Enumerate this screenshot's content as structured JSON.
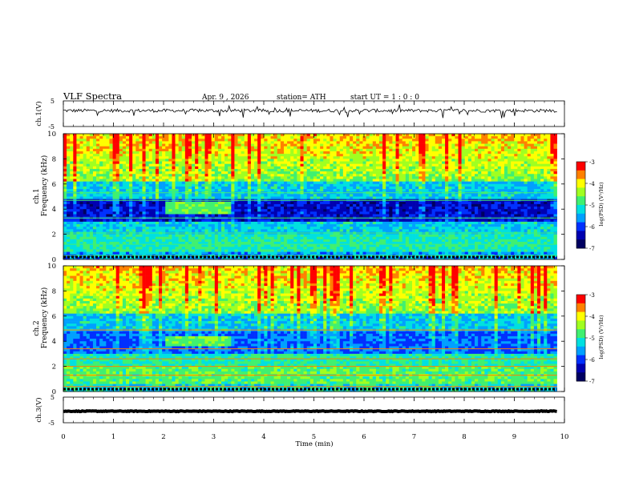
{
  "chart_data": {
    "type": "heatmap",
    "header": {
      "title": "VLF  Spectra",
      "date": "Apr. 9  , 2026",
      "station": "station= ATH",
      "start": "start  UT  =    1  : 0   : 0"
    },
    "x_axis": {
      "label": "Time  (min)",
      "range": [
        0,
        10
      ],
      "ticks": [
        "0",
        "1",
        "2",
        "3",
        "4",
        "5",
        "6",
        "7",
        "8",
        "9",
        "10"
      ]
    },
    "data_end_min": 9.85,
    "panels": [
      {
        "name": "ch1-voltage",
        "type": "line",
        "ylabel": "ch.1(V)",
        "yrange": [
          -5,
          5
        ],
        "yticks": [
          "5",
          "-5"
        ],
        "baseline_v": 1.2,
        "noise_amp_v": 1.3
      },
      {
        "name": "ch1-spectrogram",
        "type": "heatmap",
        "ylabel": "ch.1",
        "ylabel2": "Frequency  (kHz)",
        "yrange_khz": [
          0,
          10
        ],
        "yticks": [
          "0",
          "2",
          "4",
          "6",
          "8",
          "10"
        ],
        "enhanced_band": {
          "t_start_min": 2.05,
          "t_end_min": 3.35,
          "f_low_khz": 3.6,
          "f_high_khz": 4.6
        },
        "colorbar": {
          "label": "log(PSD) (V²/Hz)",
          "range": [
            -7,
            -3
          ],
          "ticks": [
            "-3",
            "-4",
            "-5",
            "-6",
            "-7"
          ]
        }
      },
      {
        "name": "ch2-spectrogram",
        "type": "heatmap",
        "ylabel": "ch.2",
        "ylabel2": "Frequency  (kHz)",
        "yrange_khz": [
          0,
          10
        ],
        "yticks": [
          "0",
          "2",
          "4",
          "6",
          "8",
          "10"
        ],
        "enhanced_band": {
          "t_start_min": 2.05,
          "t_end_min": 3.35,
          "f_low_khz": 3.6,
          "f_high_khz": 4.4
        },
        "colorbar": {
          "label": "log(PSD) (V²/Hz)",
          "range": [
            -7,
            -3
          ],
          "ticks": [
            "-3",
            "-4",
            "-5",
            "-6",
            "-7"
          ]
        }
      },
      {
        "name": "ch3-voltage",
        "type": "line",
        "ylabel": "ch.3(V)",
        "yrange": [
          -5,
          5
        ],
        "yticks": [
          "5",
          "-5"
        ],
        "baseline_v": -0.5,
        "noise_amp_v": 0.15
      }
    ],
    "colormap": [
      "#000060",
      "#0000b0",
      "#0030ff",
      "#00a0ff",
      "#00e0e0",
      "#40f070",
      "#a0ff20",
      "#ffff00",
      "#ff8000",
      "#ff0000",
      "#ffffff"
    ]
  }
}
